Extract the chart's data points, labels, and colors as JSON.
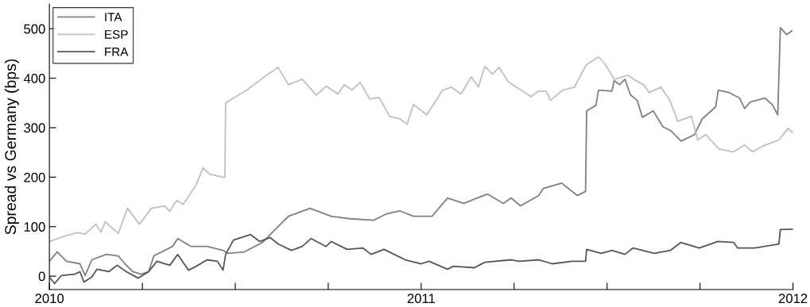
{
  "chart_data": {
    "type": "line",
    "ylabel": "Spread vs Germany (bps)",
    "xlim": [
      2010,
      2012
    ],
    "ylim": [
      -27,
      550
    ],
    "xticks": [
      2010,
      {
        "value": 2010.25,
        "label": null
      },
      {
        "value": 2010.5,
        "label": null
      },
      {
        "value": 2010.75,
        "label": null
      },
      2011,
      {
        "value": 2011.25,
        "label": null
      },
      {
        "value": 2011.5,
        "label": null
      },
      {
        "value": 2011.75,
        "label": null
      },
      2012
    ],
    "yticks": [
      0,
      100,
      200,
      300,
      400,
      500
    ],
    "grid": false,
    "legend": "top left",
    "marker": "none",
    "line_style": "solid",
    "series": [
      {
        "name": "ITA",
        "color": "#808080",
        "x": [
          2010.0,
          2010.021,
          2010.046,
          2010.082,
          2010.096,
          2010.114,
          2010.153,
          2010.185,
          2010.203,
          2010.224,
          2010.246,
          2010.267,
          2010.281,
          2010.31,
          2010.331,
          2010.345,
          2010.381,
          2010.424,
          2010.467,
          2010.481,
          2010.524,
          2010.573,
          2010.594,
          2010.643,
          2010.701,
          2010.758,
          2010.808,
          2010.872,
          2010.907,
          2010.942,
          2010.979,
          2011.029,
          2011.071,
          2011.114,
          2011.178,
          2011.221,
          2011.242,
          2011.267,
          2011.316,
          2011.328,
          2011.378,
          2011.42,
          2011.442,
          2011.445,
          2011.47,
          2011.477,
          2011.513,
          2011.519,
          2011.534,
          2011.548,
          2011.563,
          2011.581,
          2011.595,
          2011.624,
          2011.65,
          2011.671,
          2011.699,
          2011.735,
          2011.756,
          2011.792,
          2011.799,
          2011.828,
          2011.856,
          2011.87,
          2011.885,
          2011.924,
          2011.944,
          2011.959,
          2011.966,
          2011.983,
          2011.997
        ],
        "values": [
          30,
          49,
          30,
          25,
          1,
          33,
          44,
          41,
          25,
          9,
          4,
          9,
          41,
          52,
          60,
          76,
          60,
          60,
          52,
          46,
          49,
          68,
          84,
          121,
          137,
          121,
          116,
          113,
          126,
          132,
          121,
          121,
          158,
          147,
          166,
          147,
          158,
          142,
          163,
          177,
          188,
          163,
          171,
          334,
          345,
          376,
          374,
          395,
          387,
          398,
          366,
          355,
          321,
          334,
          302,
          294,
          273,
          286,
          318,
          342,
          376,
          371,
          360,
          339,
          352,
          360,
          347,
          326,
          502,
          488,
          496
        ]
      },
      {
        "name": "ESP",
        "color": "#c0c0c0",
        "x": [
          2010.0,
          2010.046,
          2010.075,
          2010.096,
          2010.125,
          2010.139,
          2010.15,
          2010.185,
          2010.21,
          2010.242,
          2010.274,
          2010.31,
          2010.324,
          2010.342,
          2010.36,
          2010.395,
          2010.413,
          2010.431,
          2010.467,
          2010.472,
          2010.474,
          2010.495,
          2010.531,
          2010.573,
          2010.615,
          2010.643,
          2010.68,
          2010.718,
          2010.744,
          2010.776,
          2010.793,
          2010.814,
          2010.836,
          2010.861,
          2010.887,
          2010.915,
          2010.942,
          2010.962,
          2010.979,
          2011.015,
          2011.058,
          2011.081,
          2011.107,
          2011.135,
          2011.154,
          2011.171,
          2011.192,
          2011.209,
          2011.235,
          2011.256,
          2011.295,
          2011.316,
          2011.336,
          2011.348,
          2011.38,
          2011.412,
          2011.444,
          2011.477,
          2011.496,
          2011.519,
          2011.556,
          2011.571,
          2011.598,
          2011.613,
          2011.645,
          2011.669,
          2011.69,
          2011.727,
          2011.744,
          2011.765,
          2011.801,
          2011.84,
          2011.87,
          2011.891,
          2011.925,
          2011.962,
          2011.987,
          2012.0
        ],
        "values": [
          70,
          82,
          88,
          85,
          105,
          89,
          110,
          86,
          137,
          105,
          137,
          142,
          131,
          153,
          145,
          185,
          219,
          206,
          200,
          200,
          350,
          360,
          376,
          400,
          422,
          387,
          398,
          366,
          384,
          368,
          387,
          376,
          392,
          358,
          361,
          323,
          318,
          307,
          347,
          326,
          376,
          382,
          368,
          403,
          382,
          424,
          408,
          422,
          392,
          382,
          363,
          374,
          374,
          355,
          376,
          382,
          427,
          443,
          427,
          398,
          406,
          398,
          387,
          371,
          382,
          355,
          313,
          323,
          275,
          286,
          257,
          251,
          265,
          251,
          265,
          275,
          299,
          289
        ]
      },
      {
        "name": "FRA",
        "color": "#555555",
        "x": [
          2010.0,
          2010.014,
          2010.032,
          2010.068,
          2010.082,
          2010.093,
          2010.114,
          2010.128,
          2010.16,
          2010.182,
          2010.207,
          2010.239,
          2010.267,
          2010.289,
          2010.324,
          2010.345,
          2010.374,
          2010.395,
          2010.424,
          2010.452,
          2010.467,
          2010.474,
          2010.495,
          2010.541,
          2010.566,
          2010.594,
          2010.615,
          2010.651,
          2010.68,
          2010.704,
          2010.744,
          2010.758,
          2010.801,
          2010.843,
          2010.865,
          2010.9,
          2010.957,
          2011.0,
          2011.021,
          2011.071,
          2011.086,
          2011.143,
          2011.171,
          2011.242,
          2011.264,
          2011.316,
          2011.353,
          2011.406,
          2011.442,
          2011.445,
          2011.484,
          2011.513,
          2011.548,
          2011.57,
          2011.627,
          2011.67,
          2011.698,
          2011.748,
          2011.798,
          2011.841,
          2011.851,
          2011.897,
          2011.962,
          2011.966,
          2012.0
        ],
        "values": [
          -2,
          -15,
          1,
          4,
          9,
          -12,
          -2,
          14,
          9,
          22,
          9,
          -4,
          9,
          30,
          22,
          44,
          12,
          20,
          33,
          30,
          12,
          44,
          73,
          84,
          70,
          78,
          65,
          52,
          60,
          76,
          60,
          70,
          54,
          57,
          44,
          54,
          33,
          25,
          30,
          14,
          20,
          17,
          28,
          33,
          30,
          33,
          25,
          30,
          30,
          54,
          46,
          52,
          44,
          57,
          46,
          52,
          68,
          57,
          70,
          68,
          57,
          57,
          65,
          94,
          95
        ]
      }
    ]
  }
}
